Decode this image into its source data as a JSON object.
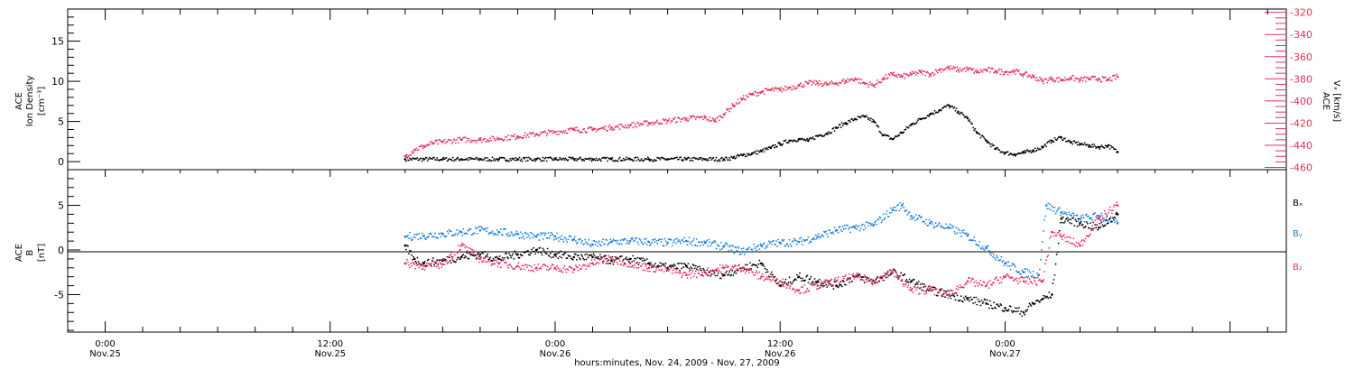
{
  "colors": {
    "axis": "#000000",
    "bx": "#000000",
    "by": "#1a7fe0",
    "bz": "#e8305a",
    "velocity": "#e8305a",
    "density": "#000000"
  },
  "chart_data": [
    {
      "type": "scatter",
      "panel": "top",
      "ylabel_left": [
        "ACE",
        "Ion Density",
        "[cm⁻³]"
      ],
      "ylabel_right": [
        "ACE",
        "Vₓ [km/s]"
      ],
      "ylim_left": [
        -1,
        19
      ],
      "yticks_left": [
        0,
        5,
        10,
        15
      ],
      "ylim_right": [
        -462,
        -317
      ],
      "yticks_right": [
        -320,
        -340,
        -360,
        -380,
        -400,
        -420,
        -440,
        -460
      ],
      "series": [
        {
          "key": "density",
          "x": [
            16,
            17,
            18,
            19,
            20,
            21,
            22,
            23,
            24,
            25,
            26,
            27,
            28,
            29,
            30,
            31,
            32,
            33,
            33.5,
            34,
            34.5,
            35,
            35.5,
            36,
            36.5,
            37,
            37.5,
            38,
            38.5,
            39,
            39.5,
            40,
            40.5,
            41,
            41.5,
            42,
            42.5,
            43,
            43.5,
            44,
            44.5,
            45,
            45.5,
            46,
            46.5,
            47,
            47.5,
            48,
            48.5,
            49,
            49.5,
            50,
            50.5,
            51,
            51.5,
            52,
            52.5,
            53,
            53.5,
            54
          ],
          "y": [
            0.3,
            0.3,
            0.3,
            0.3,
            0.3,
            0.3,
            0.3,
            0.3,
            0.3,
            0.3,
            0.3,
            0.3,
            0.3,
            0.3,
            0.3,
            0.3,
            0.3,
            0.3,
            0.5,
            0.8,
            1.0,
            1.3,
            1.7,
            2.2,
            2.6,
            2.8,
            2.6,
            3.2,
            3.5,
            4.2,
            4.8,
            5.3,
            5.6,
            5.0,
            3.3,
            2.8,
            3.6,
            4.6,
            5.3,
            5.9,
            6.4,
            7.0,
            6.2,
            5.4,
            3.6,
            2.6,
            1.6,
            1.1,
            0.9,
            1.1,
            1.4,
            1.8,
            2.6,
            3.0,
            2.4,
            2.2,
            2.0,
            1.8,
            2.0,
            1.2
          ]
        },
        {
          "key": "velocity",
          "x": [
            16,
            16.5,
            17,
            17.5,
            18,
            19,
            20,
            21,
            22,
            23,
            24,
            25,
            26,
            27,
            28,
            29,
            30,
            31,
            32,
            32.5,
            33,
            33.5,
            34,
            34.5,
            35,
            35.5,
            36,
            36.5,
            37,
            37.5,
            38,
            38.5,
            39,
            39.5,
            40,
            40.5,
            41,
            41.5,
            42,
            42.5,
            43,
            43.5,
            44,
            44.5,
            45,
            45.5,
            46,
            46.5,
            47,
            47.5,
            48,
            48.5,
            49,
            49.5,
            50,
            50.5,
            51,
            51.5,
            52,
            52.5,
            53,
            53.5,
            54
          ],
          "y": [
            -450,
            -444,
            -441,
            -438,
            -437,
            -435,
            -435,
            -434,
            -432,
            -430,
            -428,
            -426,
            -426,
            -424,
            -422,
            -420,
            -418,
            -416,
            -415,
            -418,
            -412,
            -404,
            -398,
            -394,
            -392,
            -390,
            -390,
            -388,
            -386,
            -384,
            -384,
            -385,
            -384,
            -382,
            -380,
            -384,
            -386,
            -380,
            -376,
            -378,
            -376,
            -374,
            -376,
            -372,
            -370,
            -372,
            -371,
            -374,
            -372,
            -373,
            -374,
            -373,
            -376,
            -378,
            -382,
            -380,
            -381,
            -379,
            -381,
            -380,
            -380,
            -381,
            -378
          ]
        }
      ]
    },
    {
      "type": "scatter",
      "panel": "bottom",
      "ylabel_left": [
        "ACE",
        "B",
        "[nT]"
      ],
      "ylim": [
        -9.2,
        9
      ],
      "yticks": [
        -5,
        0,
        5
      ],
      "legend": [
        {
          "key": "bx",
          "label": "Bₓ"
        },
        {
          "key": "by",
          "label": "Bᵧ"
        },
        {
          "key": "bz",
          "label": "B₂"
        }
      ],
      "series": [
        {
          "key": "by",
          "x": [
            16,
            17,
            18,
            19,
            20,
            21,
            22,
            23,
            24,
            25,
            26,
            27,
            28,
            29,
            30,
            31,
            32,
            33,
            34,
            35,
            36,
            37,
            38,
            39,
            40,
            41,
            42,
            42.5,
            43,
            44,
            45,
            46,
            47,
            48,
            49,
            49.8,
            50.2,
            51,
            52,
            53,
            54
          ],
          "y": [
            1.5,
            1.6,
            1.8,
            2.0,
            2.2,
            2.0,
            1.8,
            1.5,
            1.5,
            1.2,
            0.6,
            0.9,
            1.0,
            0.9,
            0.8,
            1.0,
            0.8,
            0.4,
            -0.2,
            0.5,
            0.8,
            0.9,
            1.5,
            2.2,
            2.5,
            2.8,
            4.5,
            5.0,
            3.8,
            3.0,
            2.5,
            1.6,
            0.2,
            -1.5,
            -2.5,
            -2.8,
            5.0,
            4.2,
            3.5,
            3.8,
            3.0
          ]
        },
        {
          "key": "bx",
          "x": [
            16,
            16.5,
            17,
            18,
            19,
            20,
            21,
            22,
            23,
            24,
            25,
            26,
            27,
            28,
            29,
            30,
            31,
            32,
            33,
            34,
            35,
            36,
            37,
            38,
            39,
            40,
            41,
            42,
            43,
            44,
            45,
            46,
            47,
            48,
            49,
            49.5,
            50,
            50.5,
            51,
            52,
            53,
            54
          ],
          "y": [
            0.5,
            -1.0,
            -1.5,
            -1.2,
            -0.8,
            -0.5,
            -1.0,
            -0.5,
            0.0,
            -0.5,
            -0.8,
            -0.8,
            -1.2,
            -1.0,
            -1.5,
            -2.0,
            -1.8,
            -2.5,
            -2.8,
            -2.0,
            -1.5,
            -4.0,
            -3.0,
            -3.5,
            -4.0,
            -3.0,
            -3.5,
            -2.5,
            -3.5,
            -4.5,
            -5.0,
            -5.5,
            -6.0,
            -6.5,
            -7.0,
            -6.0,
            -5.5,
            -5.0,
            3.5,
            3.0,
            2.5,
            4.0
          ]
        },
        {
          "key": "bz",
          "x": [
            16,
            17,
            18,
            19,
            20,
            21,
            22,
            23,
            24,
            25,
            26,
            27,
            28,
            29,
            30,
            31,
            32,
            33,
            34,
            35,
            36,
            37,
            38,
            39,
            40,
            41,
            42,
            43,
            44,
            45,
            46,
            47,
            48,
            49,
            50,
            50.5,
            51,
            52,
            53,
            54
          ],
          "y": [
            -1.5,
            -1.8,
            -1.6,
            0.5,
            -1.0,
            -1.5,
            -1.8,
            -2.0,
            -2.0,
            -2.2,
            -1.5,
            -1.0,
            -1.5,
            -2.0,
            -2.2,
            -2.8,
            -2.5,
            -2.0,
            -2.0,
            -3.0,
            -3.5,
            -4.5,
            -4.0,
            -3.5,
            -3.0,
            -3.5,
            -2.5,
            -4.5,
            -4.5,
            -5.0,
            -3.5,
            -4.0,
            -3.0,
            -3.5,
            -3.5,
            2.0,
            1.5,
            0.5,
            3.5,
            5.0
          ]
        }
      ]
    }
  ],
  "xaxis": {
    "range_hours": [
      -2,
      63
    ],
    "ticks": [
      {
        "h": 0,
        "time": "0:00",
        "date": "Nov.25"
      },
      {
        "h": 12,
        "time": "12:00",
        "date": "Nov.25"
      },
      {
        "h": 24,
        "time": "0:00",
        "date": "Nov.26"
      },
      {
        "h": 36,
        "time": "12:00",
        "date": "Nov.26"
      },
      {
        "h": 48,
        "time": "0:00",
        "date": "Nov.27"
      }
    ],
    "label": "hours:minutes, Nov. 24, 2009 - Nov. 27, 2009"
  }
}
